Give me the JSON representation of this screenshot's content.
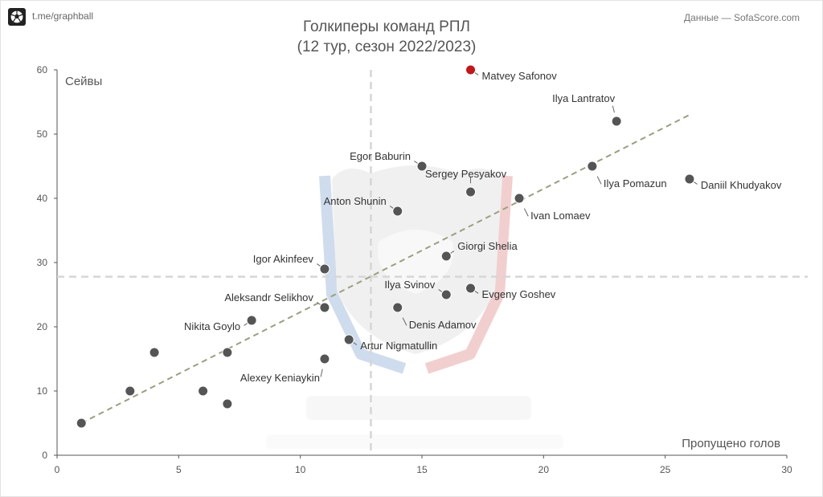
{
  "header": {
    "channel": "t.me/graphball",
    "source": "Данные — SofaScore.com",
    "logo_icon": "soccer-ball-icon"
  },
  "chart_data": {
    "type": "scatter",
    "title": "Голкиперы команд РПЛ",
    "subtitle": "(12 тур, сезон 2022/2023)",
    "xlabel": "Пропущено голов",
    "ylabel": "Сейвы",
    "xlim": [
      0,
      30
    ],
    "ylim": [
      0,
      60
    ],
    "xticks": [
      0,
      5,
      10,
      15,
      20,
      25,
      30
    ],
    "yticks": [
      0,
      10,
      20,
      30,
      40,
      50,
      60
    ],
    "grid": false,
    "reference_lines": {
      "x": 12.9,
      "y": 27.8
    },
    "trend_line": {
      "from": [
        1,
        5
      ],
      "to": [
        26,
        53
      ]
    },
    "colors": {
      "point": "#555555",
      "highlight": "#c0171b",
      "trend": "#9a9f80",
      "reference": "#d6d6d6",
      "watermark_red": "#e8a8a8",
      "watermark_blue": "#a8c0e0"
    },
    "points": [
      {
        "x": 17,
        "y": 60,
        "label": "Matvey Safonov",
        "highlight": true,
        "pos": "right-below"
      },
      {
        "x": 23,
        "y": 52,
        "label": "Ilya Lantratov",
        "pos": "above-left"
      },
      {
        "x": 15,
        "y": 45,
        "label": "Egor Baburin",
        "pos": "left-above"
      },
      {
        "x": 22,
        "y": 45,
        "label": "Ilya Pomazun",
        "pos": "below-right"
      },
      {
        "x": 26,
        "y": 43,
        "label": "Daniil Khudyakov",
        "pos": "right-below"
      },
      {
        "x": 17,
        "y": 41,
        "label": "Sergey Pesyakov",
        "pos": "above-right"
      },
      {
        "x": 19,
        "y": 40,
        "label": "Ivan Lomaev",
        "pos": "below-right"
      },
      {
        "x": 14,
        "y": 38,
        "label": "Anton Shunin",
        "pos": "left-above"
      },
      {
        "x": 16,
        "y": 31,
        "label": "Giorgi Shelia",
        "pos": "right-above"
      },
      {
        "x": 11,
        "y": 29,
        "label": "Igor Akinfeev",
        "pos": "left-above"
      },
      {
        "x": 17,
        "y": 26,
        "label": "Evgeny Goshev",
        "pos": "right-below"
      },
      {
        "x": 16,
        "y": 25,
        "label": "Ilya Svinov",
        "pos": "left-above"
      },
      {
        "x": 11,
        "y": 23,
        "label": "Aleksandr Selikhov",
        "pos": "left-above"
      },
      {
        "x": 14,
        "y": 23,
        "label": "Denis Adamov",
        "pos": "below-right"
      },
      {
        "x": 8,
        "y": 21,
        "label": "Nikita Goylo",
        "pos": "left-below"
      },
      {
        "x": 12,
        "y": 18,
        "label": "Artur Nigmatullin",
        "pos": "right-below"
      },
      {
        "x": 11,
        "y": 15,
        "label": "Alexey Keniaykin",
        "pos": "below-left"
      },
      {
        "x": 4,
        "y": 16
      },
      {
        "x": 7,
        "y": 16
      },
      {
        "x": 3,
        "y": 10
      },
      {
        "x": 6,
        "y": 10
      },
      {
        "x": 7,
        "y": 8
      },
      {
        "x": 1,
        "y": 5
      }
    ]
  }
}
